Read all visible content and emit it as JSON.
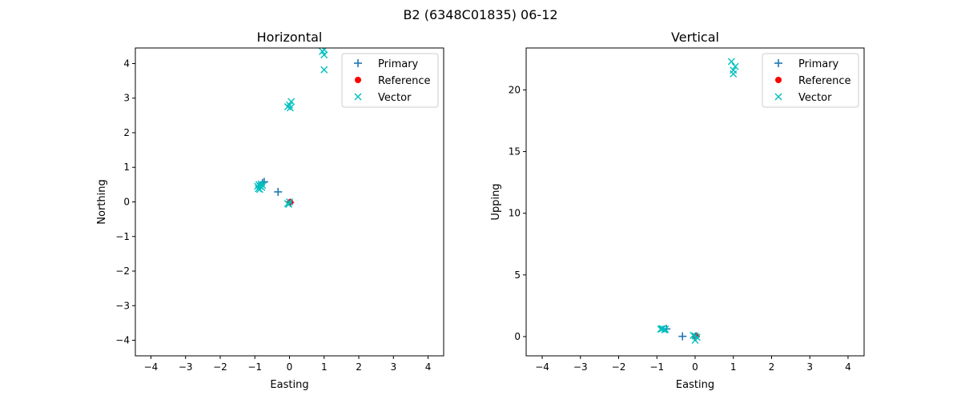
{
  "suptitle": "B2 (6348C01835) 06-12",
  "colors": {
    "primary": "#1f77b4",
    "reference": "#ff0000",
    "vector": "#00bfbf"
  },
  "chart_data": [
    {
      "type": "scatter",
      "title": "Horizontal",
      "xlabel": "Easting",
      "ylabel": "Northing",
      "xlim": [
        -4.45,
        4.45
      ],
      "ylim": [
        -4.45,
        4.45
      ],
      "xticks": [
        -4,
        -3,
        -2,
        -1,
        0,
        1,
        2,
        3,
        4
      ],
      "yticks": [
        -4,
        -3,
        -2,
        -1,
        0,
        1,
        2,
        3,
        4
      ],
      "legend_position": "top-right",
      "series": [
        {
          "name": "Primary",
          "marker": "+",
          "points": [
            [
              -0.33,
              0.29
            ],
            [
              -0.78,
              0.55
            ],
            [
              -0.73,
              0.58
            ],
            [
              0.02,
              -0.02
            ]
          ]
        },
        {
          "name": "Reference",
          "marker": "o",
          "points": [
            [
              0.02,
              -0.01
            ]
          ]
        },
        {
          "name": "Vector",
          "marker": "x",
          "points": [
            [
              -0.9,
              0.38
            ],
            [
              -0.85,
              0.45
            ],
            [
              -0.88,
              0.5
            ],
            [
              -0.8,
              0.42
            ],
            [
              -0.82,
              0.52
            ],
            [
              -0.92,
              0.45
            ],
            [
              -0.78,
              0.48
            ],
            [
              -0.86,
              0.36
            ],
            [
              -0.05,
              -0.05
            ],
            [
              0.0,
              0.0
            ],
            [
              -0.02,
              -0.07
            ],
            [
              0.0,
              2.8
            ],
            [
              -0.05,
              2.75
            ],
            [
              0.05,
              2.9
            ],
            [
              0.02,
              2.72
            ],
            [
              1.0,
              4.4
            ],
            [
              0.95,
              4.35
            ],
            [
              1.0,
              4.25
            ],
            [
              1.0,
              3.82
            ]
          ]
        }
      ]
    },
    {
      "type": "scatter",
      "title": "Vertical",
      "xlabel": "Easting",
      "ylabel": "Upping",
      "xlim": [
        -4.42,
        4.42
      ],
      "ylim": [
        -1.56,
        23.4
      ],
      "xticks": [
        -4,
        -3,
        -2,
        -1,
        0,
        1,
        2,
        3,
        4
      ],
      "yticks": [
        0,
        5,
        10,
        15,
        20
      ],
      "legend_position": "top-right",
      "series": [
        {
          "name": "Primary",
          "marker": "+",
          "points": [
            [
              -0.33,
              0.02
            ],
            [
              -0.75,
              0.62
            ],
            [
              0.02,
              0.0
            ]
          ]
        },
        {
          "name": "Reference",
          "marker": "o",
          "points": [
            [
              0.02,
              0.05
            ]
          ]
        },
        {
          "name": "Vector",
          "marker": "x",
          "points": [
            [
              -0.9,
              0.6
            ],
            [
              -0.85,
              0.65
            ],
            [
              -0.8,
              0.55
            ],
            [
              -0.88,
              0.62
            ],
            [
              -0.78,
              0.6
            ],
            [
              0.0,
              0.05
            ],
            [
              -0.05,
              0.1
            ],
            [
              0.05,
              -0.05
            ],
            [
              0.0,
              -0.3
            ],
            [
              0.95,
              22.3
            ],
            [
              1.05,
              21.9
            ],
            [
              1.0,
              21.6
            ],
            [
              1.0,
              21.3
            ]
          ]
        }
      ]
    }
  ]
}
